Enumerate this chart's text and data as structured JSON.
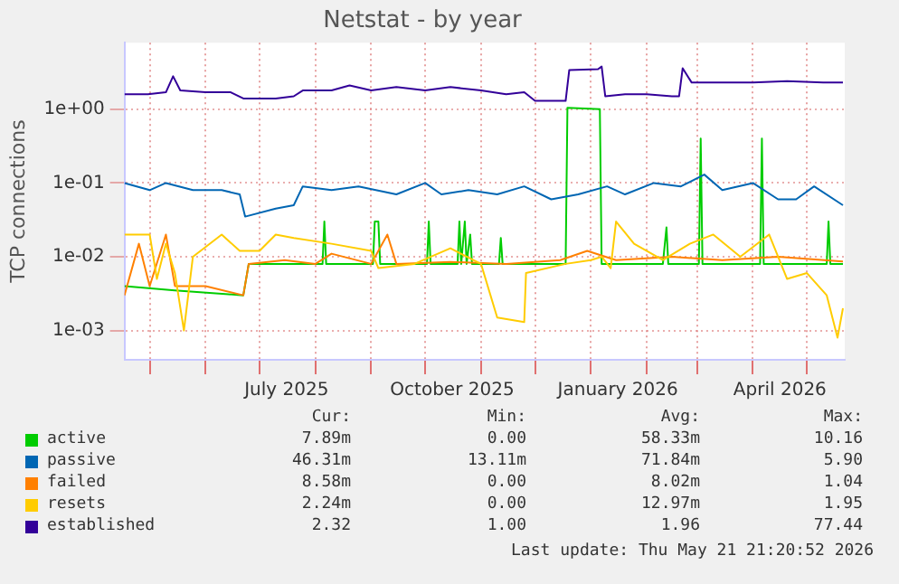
{
  "chart_data": {
    "type": "line",
    "title": "Netstat - by year",
    "ylabel": "TCP connections",
    "log": "y",
    "grid": true,
    "legend": "bottom",
    "marker": "none",
    "line_style": "solid",
    "xlim": [
      "2025-04-17",
      "2026-05-22"
    ],
    "xticks": [
      {
        "value": "2025-05-01",
        "label": null
      },
      {
        "value": "2025-06-01",
        "label": null
      },
      {
        "value": "2025-07-01",
        "label": null
      },
      {
        "value": "2025-07-16",
        "label": "July 2025"
      },
      {
        "value": "2025-08-01",
        "label": null
      },
      {
        "value": "2025-09-01",
        "label": null
      },
      {
        "value": "2025-10-01",
        "label": null
      },
      {
        "value": "2025-10-16",
        "label": "October 2025"
      },
      {
        "value": "2025-11-01",
        "label": null
      },
      {
        "value": "2025-12-01",
        "label": null
      },
      {
        "value": "2026-01-01",
        "label": null
      },
      {
        "value": "2026-01-16",
        "label": "January 2026"
      },
      {
        "value": "2026-02-01",
        "label": null
      },
      {
        "value": "2026-03-01",
        "label": null
      },
      {
        "value": "2026-04-01",
        "label": null
      },
      {
        "value": "2026-04-16",
        "label": "April 2026"
      },
      {
        "value": "2026-05-01",
        "label": null
      }
    ],
    "ylim": [
      0.0004,
      8
    ],
    "yticks": [
      {
        "value": 0.001,
        "label": "1e-03"
      },
      {
        "value": 0.01,
        "label": "1e-02"
      },
      {
        "value": 0.1,
        "label": "1e-01"
      },
      {
        "value": 1,
        "label": "1e+00"
      }
    ],
    "series": [
      {
        "name": "active",
        "color": "#00cc00",
        "x": [
          "2025-04-17",
          "2025-05-15",
          "2025-06-22",
          "2025-06-25",
          "2025-08-05",
          "2025-08-06",
          "2025-08-07",
          "2025-09-02",
          "2025-09-03",
          "2025-09-05",
          "2025-09-06",
          "2025-10-02",
          "2025-10-03",
          "2025-10-04",
          "2025-10-19",
          "2025-10-20",
          "2025-10-21",
          "2025-10-23",
          "2025-10-24",
          "2025-10-26",
          "2025-10-27",
          "2025-11-11",
          "2025-11-12",
          "2025-11-13",
          "2025-12-18",
          "2025-12-19",
          "2026-01-06",
          "2026-01-07",
          "2026-02-10",
          "2026-02-12",
          "2026-02-13",
          "2026-03-02",
          "2026-03-03",
          "2026-03-04",
          "2026-04-05",
          "2026-04-06",
          "2026-04-07",
          "2026-05-12",
          "2026-05-13",
          "2026-05-14",
          "2026-05-21"
        ],
        "values": [
          0.004,
          0.0035,
          0.003,
          0.008,
          0.008,
          0.03,
          0.008,
          0.008,
          0.03,
          0.03,
          0.008,
          0.008,
          0.03,
          0.008,
          0.008,
          0.03,
          0.008,
          0.03,
          0.008,
          0.02,
          0.008,
          0.008,
          0.018,
          0.008,
          0.008,
          1.05,
          1.0,
          0.008,
          0.008,
          0.025,
          0.008,
          0.008,
          0.4,
          0.008,
          0.008,
          0.4,
          0.008,
          0.008,
          0.03,
          0.008,
          0.008
        ]
      },
      {
        "name": "passive",
        "color": "#0066b3",
        "x": [
          "2025-04-17",
          "2025-05-01",
          "2025-05-10",
          "2025-05-25",
          "2025-06-10",
          "2025-06-20",
          "2025-06-23",
          "2025-07-10",
          "2025-07-20",
          "2025-07-25",
          "2025-08-10",
          "2025-08-25",
          "2025-09-15",
          "2025-10-01",
          "2025-10-10",
          "2025-10-25",
          "2025-11-10",
          "2025-11-25",
          "2025-12-10",
          "2025-12-25",
          "2026-01-10",
          "2026-01-20",
          "2026-02-05",
          "2026-02-20",
          "2026-03-05",
          "2026-03-15",
          "2026-04-01",
          "2026-04-15",
          "2026-04-25",
          "2026-05-05",
          "2026-05-21"
        ],
        "values": [
          0.1,
          0.08,
          0.1,
          0.08,
          0.08,
          0.07,
          0.035,
          0.045,
          0.05,
          0.09,
          0.08,
          0.09,
          0.07,
          0.1,
          0.07,
          0.08,
          0.07,
          0.09,
          0.06,
          0.07,
          0.09,
          0.07,
          0.1,
          0.09,
          0.13,
          0.08,
          0.1,
          0.06,
          0.06,
          0.09,
          0.05
        ]
      },
      {
        "name": "failed",
        "color": "#ff8000",
        "x": [
          "2025-04-17",
          "2025-04-25",
          "2025-05-01",
          "2025-05-10",
          "2025-05-15",
          "2025-06-01",
          "2025-06-22",
          "2025-06-25",
          "2025-07-15",
          "2025-08-01",
          "2025-08-10",
          "2025-09-01",
          "2025-09-10",
          "2025-09-15",
          "2025-10-15",
          "2025-11-15",
          "2025-12-15",
          "2025-12-30",
          "2026-01-15",
          "2026-02-15",
          "2026-03-15",
          "2026-04-15",
          "2026-05-21"
        ],
        "values": [
          0.003,
          0.015,
          0.004,
          0.02,
          0.004,
          0.004,
          0.003,
          0.008,
          0.009,
          0.008,
          0.011,
          0.008,
          0.02,
          0.008,
          0.0085,
          0.008,
          0.009,
          0.012,
          0.009,
          0.01,
          0.009,
          0.01,
          0.0086
        ]
      },
      {
        "name": "resets",
        "color": "#ffcc00",
        "x": [
          "2025-04-17",
          "2025-05-01",
          "2025-05-05",
          "2025-05-10",
          "2025-05-15",
          "2025-05-20",
          "2025-05-25",
          "2025-06-10",
          "2025-06-20",
          "2025-07-01",
          "2025-07-10",
          "2025-07-20",
          "2025-08-10",
          "2025-09-01",
          "2025-09-05",
          "2025-09-25",
          "2025-10-15",
          "2025-11-01",
          "2025-11-10",
          "2025-11-25",
          "2025-11-26",
          "2025-12-18",
          "2026-01-01",
          "2026-01-07",
          "2026-01-12",
          "2026-01-15",
          "2026-01-25",
          "2026-02-10",
          "2026-02-25",
          "2026-03-10",
          "2026-03-25",
          "2026-04-10",
          "2026-04-20",
          "2026-05-01",
          "2026-05-12",
          "2026-05-18",
          "2026-05-21"
        ],
        "values": [
          0.02,
          0.02,
          0.005,
          0.015,
          0.006,
          0.001,
          0.01,
          0.02,
          0.012,
          0.012,
          0.02,
          0.018,
          0.015,
          0.012,
          0.007,
          0.008,
          0.013,
          0.008,
          0.0015,
          0.0013,
          0.006,
          0.008,
          0.009,
          0.01,
          0.007,
          0.03,
          0.015,
          0.009,
          0.015,
          0.02,
          0.01,
          0.02,
          0.005,
          0.006,
          0.003,
          0.0008,
          0.002
        ]
      },
      {
        "name": "established",
        "color": "#330099",
        "x": [
          "2025-04-17",
          "2025-04-30",
          "2025-05-10",
          "2025-05-14",
          "2025-05-18",
          "2025-06-01",
          "2025-06-15",
          "2025-06-22",
          "2025-07-10",
          "2025-07-20",
          "2025-07-25",
          "2025-08-10",
          "2025-08-20",
          "2025-09-01",
          "2025-09-15",
          "2025-10-01",
          "2025-10-15",
          "2025-11-01",
          "2025-11-15",
          "2025-11-25",
          "2025-12-01",
          "2025-12-18",
          "2025-12-20",
          "2026-01-05",
          "2026-01-07",
          "2026-01-09",
          "2026-01-20",
          "2026-02-01",
          "2026-02-15",
          "2026-02-19",
          "2026-02-21",
          "2026-02-26",
          "2026-03-15",
          "2026-04-01",
          "2026-04-20",
          "2026-05-10",
          "2026-05-21"
        ],
        "values": [
          1.6,
          1.6,
          1.7,
          2.8,
          1.8,
          1.7,
          1.7,
          1.4,
          1.4,
          1.5,
          1.8,
          1.8,
          2.1,
          1.8,
          2.0,
          1.8,
          2.0,
          1.8,
          1.6,
          1.7,
          1.3,
          1.3,
          3.4,
          3.5,
          3.8,
          1.5,
          1.6,
          1.6,
          1.5,
          1.5,
          3.6,
          2.3,
          2.3,
          2.3,
          2.4,
          2.3,
          2.3
        ]
      }
    ],
    "annotations": [
      "Cur:",
      "Min:",
      "Avg:",
      "Max:",
      "7.89m",
      "0.00",
      "58.33m",
      "10.16",
      "46.31m",
      "13.11m",
      "71.84m",
      "5.90",
      "8.58m",
      "0.00",
      "8.02m",
      "1.04",
      "2.24m",
      "0.00",
      "12.97m",
      "1.95",
      "2.32",
      "1.00",
      "1.96",
      "77.44",
      "Last update: Thu May 21 21:20:52 2026"
    ]
  }
}
